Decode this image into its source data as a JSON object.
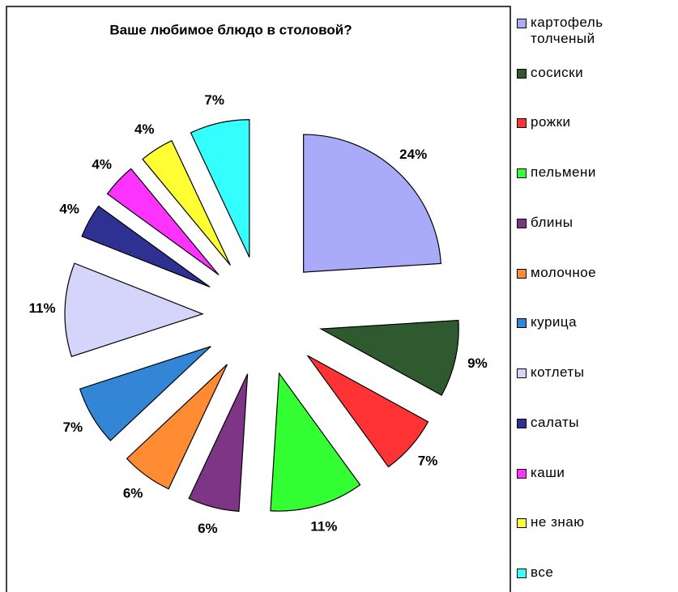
{
  "chart_data": {
    "type": "pie",
    "title": "Ваше любимое блюдо в столовой?",
    "categories": [
      "картофель толченый",
      "сосиски",
      "рожки",
      "пельмени",
      "блины",
      "молочное",
      "курица",
      "котлеты",
      "салаты",
      "каши",
      "не знаю",
      "все"
    ],
    "values": [
      24,
      9,
      7,
      11,
      6,
      6,
      7,
      11,
      4,
      4,
      4,
      7
    ],
    "value_labels": [
      "24%",
      "9%",
      "7%",
      "11%",
      "6%",
      "6%",
      "7%",
      "11%",
      "4%",
      "4%",
      "4%",
      "7%"
    ],
    "colors": [
      "#a9aaf8",
      "#2f5a30",
      "#ff3333",
      "#33ff33",
      "#7f3585",
      "#ff8c33",
      "#3385d6",
      "#d5d5fb",
      "#2e3192",
      "#ff33ff",
      "#ffff33",
      "#33ffff"
    ],
    "legend": "right"
  }
}
